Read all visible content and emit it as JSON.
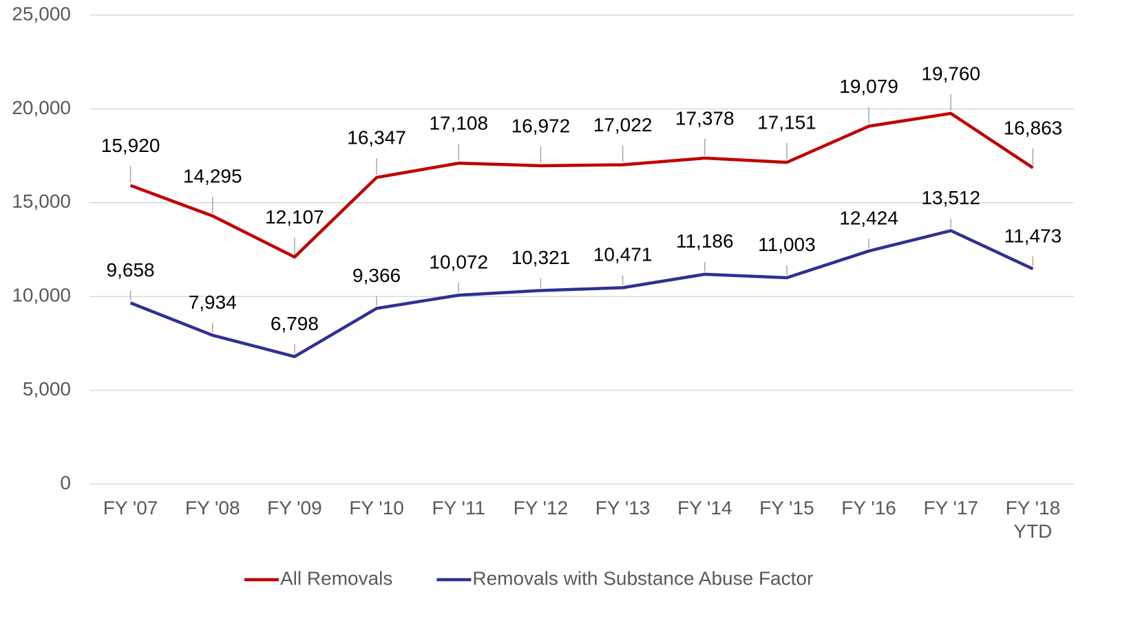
{
  "chart_data": {
    "type": "line",
    "categories": [
      "FY '07",
      "FY '08",
      "FY '09",
      "FY '10",
      "FY '11",
      "FY '12",
      "FY '13",
      "FY '14",
      "FY '15",
      "FY '16",
      "FY '17",
      "FY '18 YTD"
    ],
    "series": [
      {
        "name": "All Removals",
        "color": "#c00000",
        "values": [
          15920,
          14295,
          12107,
          16347,
          17108,
          16972,
          17022,
          17378,
          17151,
          19079,
          19760,
          16863
        ],
        "value_labels": [
          "15,920",
          "14,295",
          "12,107",
          "16,347",
          "17,108",
          "16,972",
          "17,022",
          "17,378",
          "17,151",
          "19,079",
          "19,760",
          "16,863"
        ]
      },
      {
        "name": "Removals with Substance Abuse Factor",
        "color": "#2e3192",
        "values": [
          9658,
          7934,
          6798,
          9366,
          10072,
          10321,
          10471,
          11186,
          11003,
          12424,
          13512,
          11473
        ],
        "value_labels": [
          "9,658",
          "7,934",
          "6,798",
          "9,366",
          "10,072",
          "10,321",
          "10,471",
          "11,186",
          "11,003",
          "12,424",
          "13,512",
          "11,473"
        ]
      }
    ],
    "ylim": [
      0,
      25000
    ],
    "yticks": [
      0,
      {
        "value": 5000,
        "label": "5,000"
      },
      {
        "value": 10000,
        "label": "10,000"
      },
      {
        "value": 15000,
        "label": "15,000"
      },
      {
        "value": 20000,
        "label": "20,000"
      },
      {
        "value": 25000,
        "label": "25,000"
      }
    ],
    "grid": true,
    "legend": "bottom"
  }
}
